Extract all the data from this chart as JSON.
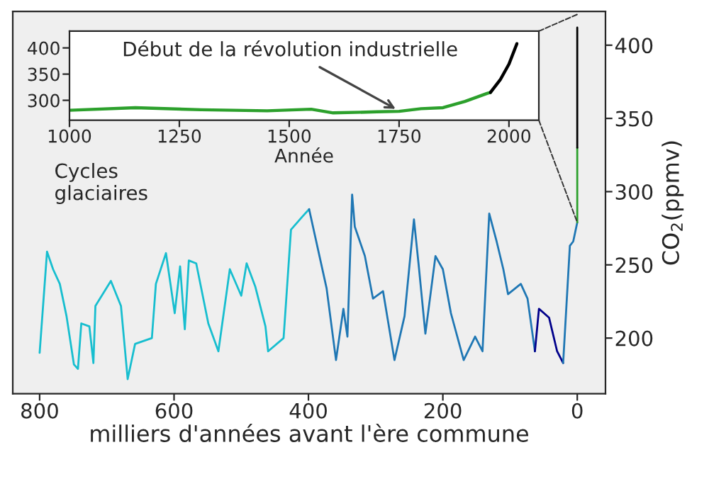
{
  "chart_data": [
    {
      "type": "line",
      "xlabel": "milliers d'années avant l'ère commune",
      "ylabel": "CO$_{2}$(ppmv)",
      "xlim": [
        840,
        -42
      ],
      "xticks": [
        800,
        600,
        400,
        200,
        0
      ],
      "ylim": [
        162,
        423
      ],
      "yticks": [
        200,
        250,
        300,
        350,
        400
      ],
      "annotations": [
        "Cycles\nglaciaires"
      ],
      "series": [
        {
          "color": "#17becf",
          "x": [
            800,
            789,
            780,
            770,
            760,
            749,
            743,
            738,
            726,
            720,
            717,
            694,
            679,
            669,
            658,
            633,
            627,
            612,
            599,
            591,
            584,
            578,
            567,
            549,
            534,
            517,
            500,
            492,
            479,
            464,
            460,
            437,
            426,
            409,
            399
          ],
          "values": [
            190,
            259,
            247,
            237,
            215,
            182,
            179,
            210,
            208,
            183,
            222,
            239,
            222,
            172,
            196,
            200,
            237,
            258,
            217,
            249,
            206,
            253,
            251,
            210,
            191,
            247,
            229,
            251,
            235,
            208,
            191,
            200,
            274,
            283,
            288
          ]
        },
        {
          "color": "#1f77b4",
          "x": [
            399,
            373,
            359,
            348,
            342,
            335,
            331,
            316,
            304,
            289,
            272,
            257,
            243,
            236,
            226,
            211,
            200,
            188,
            169,
            152,
            141,
            131,
            120,
            110,
            103,
            84,
            74,
            63
          ],
          "values": [
            288,
            234,
            185,
            220,
            201,
            298,
            276,
            256,
            227,
            232,
            185,
            215,
            281,
            250,
            203,
            256,
            247,
            217,
            185,
            201,
            191,
            285,
            266,
            247,
            230,
            237,
            227,
            191
          ]
        },
        {
          "color": "#00008b",
          "x": [
            63,
            57,
            42,
            30,
            21
          ],
          "values": [
            191,
            220,
            214,
            191,
            183
          ]
        },
        {
          "color": "#1f77b4",
          "x": [
            21,
            11,
            6,
            0
          ],
          "values": [
            183,
            263,
            266,
            279
          ]
        },
        {
          "color": "#2ca02c",
          "x": [
            0,
            0
          ],
          "values": [
            279,
            330
          ]
        },
        {
          "color": "#000000",
          "x": [
            0,
            0
          ],
          "values": [
            330,
            412
          ]
        }
      ]
    },
    {
      "type": "line",
      "xlabel": "Année",
      "xlim": [
        1000,
        2068
      ],
      "xticks": [
        1000,
        1250,
        1500,
        1750,
        2000
      ],
      "ylim": [
        262,
        432
      ],
      "yticks": [
        300,
        350,
        400
      ],
      "grid": false,
      "annotations": [
        {
          "text": "Début de la révolution industrielle",
          "x": 1750,
          "y": 280
        }
      ],
      "series": [
        {
          "color": "#2ca02c",
          "x": [
            1000,
            1150,
            1300,
            1450,
            1550,
            1600,
            1700,
            1750,
            1800,
            1850,
            1900,
            1950,
            1958
          ],
          "values": [
            281,
            286,
            282,
            280,
            283,
            276,
            278,
            279,
            284,
            286,
            298,
            313,
            315
          ]
        },
        {
          "color": "#000000",
          "x": [
            1958,
            1980,
            2000,
            2018
          ],
          "values": [
            315,
            339,
            369,
            408
          ]
        }
      ]
    }
  ]
}
